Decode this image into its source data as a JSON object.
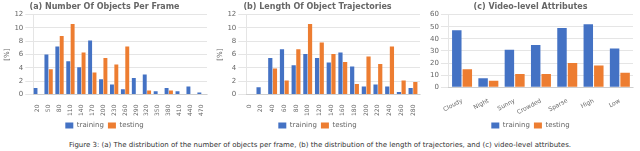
{
  "chart_data": [
    {
      "type": "bar",
      "title": "(a) Number Of Objects Per Frame",
      "ylabel": "[%]",
      "x": [
        20,
        50,
        80,
        110,
        140,
        170,
        200,
        230,
        260,
        290,
        320,
        350,
        380,
        410,
        440,
        470
      ],
      "series": [
        {
          "name": "training",
          "color": "#4472c4",
          "values": [
            1.0,
            6.0,
            7.2,
            5.0,
            4.1,
            8.1,
            2.3,
            1.5,
            0.8,
            2.5,
            3.0,
            0.5,
            1.0,
            0.5,
            1.2,
            0.3
          ]
        },
        {
          "name": "testing",
          "color": "#ed7d31",
          "values": [
            0.0,
            3.8,
            8.8,
            10.6,
            6.3,
            3.3,
            5.5,
            4.5,
            7.2,
            0.0,
            0.6,
            0.0,
            0.6,
            0.0,
            0.0,
            0.0
          ]
        }
      ],
      "xlim": [
        8,
        485
      ],
      "xticks": [
        20,
        50,
        80,
        110,
        140,
        170,
        200,
        230,
        260,
        290,
        320,
        350,
        380,
        410,
        440,
        470
      ],
      "ylim": [
        0,
        12
      ],
      "yticks": [
        0,
        2,
        4,
        6,
        8,
        10,
        12
      ],
      "grid": "y",
      "legend": "bottom"
    },
    {
      "type": "bar",
      "title": "(b) Length Of Object Trajectories",
      "ylabel": "[%]",
      "x": [
        0,
        20,
        40,
        60,
        80,
        100,
        120,
        140,
        160,
        180,
        200,
        220,
        240,
        260,
        280
      ],
      "series": [
        {
          "name": "training",
          "color": "#4472c4",
          "values": [
            0.0,
            1.1,
            5.5,
            6.8,
            4.4,
            6.1,
            5.5,
            4.8,
            6.3,
            4.2,
            1.2,
            1.5,
            1.2,
            0.4,
            1.0
          ]
        },
        {
          "name": "testing",
          "color": "#ed7d31",
          "values": [
            0.0,
            0.0,
            3.9,
            2.1,
            6.8,
            10.6,
            7.8,
            6.1,
            4.9,
            1.6,
            5.7,
            4.6,
            7.2,
            2.1,
            1.9
          ]
        }
      ],
      "xlim": [
        -5,
        292
      ],
      "xticks": [
        0,
        20,
        40,
        60,
        80,
        100,
        120,
        140,
        160,
        180,
        200,
        220,
        240,
        260,
        280
      ],
      "ylim": [
        0,
        12
      ],
      "yticks": [
        0,
        2,
        4,
        6,
        8,
        10,
        12
      ],
      "grid": "y",
      "legend": "bottom"
    },
    {
      "type": "bar",
      "title": "(c) Video-level Attributes",
      "categories": [
        "Cloudy",
        "Night",
        "Sunny",
        "Crowded",
        "Sparse",
        "High",
        "Low"
      ],
      "series": [
        {
          "name": "training",
          "color": "#4472c4",
          "values": [
            47,
            7.5,
            31,
            35,
            49,
            52,
            32
          ]
        },
        {
          "name": "testing",
          "color": "#ed7d31",
          "values": [
            15,
            5.5,
            11,
            11,
            20,
            18,
            12
          ]
        }
      ],
      "ylim": [
        0,
        60
      ],
      "yticks": [
        0,
        10,
        20,
        30,
        40,
        50,
        60
      ],
      "grid": "y",
      "legend": "bottom"
    }
  ],
  "caption": "Figure 3: (a) The distribution of the number of objects per frame, (b) the distribution of the length of trajectories, and (c) video-level attributes."
}
